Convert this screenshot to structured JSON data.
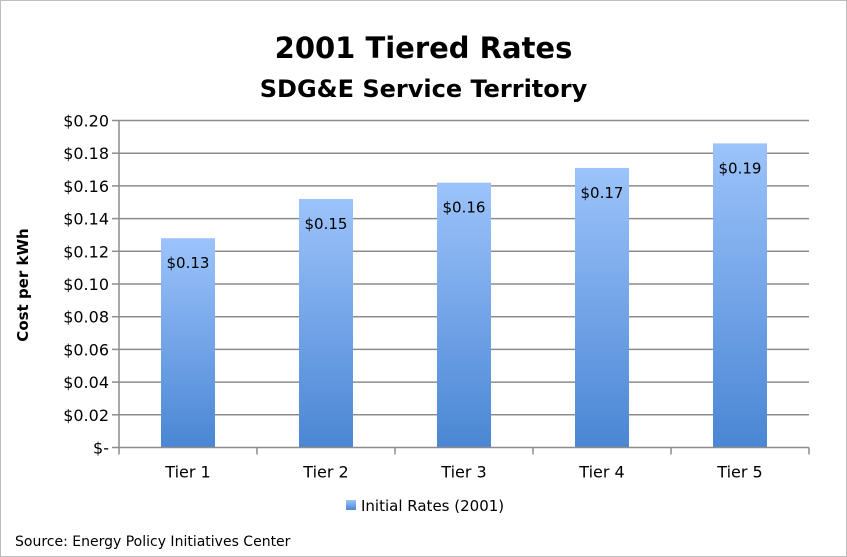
{
  "chart_data": {
    "type": "bar",
    "title": "2001 Tiered Rates",
    "subtitle": "SDG&E Service Territory",
    "xlabel": "",
    "ylabel": "Cost per kWh",
    "categories": [
      "Tier 1",
      "Tier 2",
      "Tier 3",
      "Tier 4",
      "Tier 5"
    ],
    "series": [
      {
        "name": "Initial Rates (2001)",
        "values": [
          0.128,
          0.152,
          0.162,
          0.171,
          0.186
        ],
        "data_labels": [
          "$0.13",
          "$0.15",
          "$0.16",
          "$0.17",
          "$0.19"
        ]
      }
    ],
    "ylim": [
      0,
      0.2
    ],
    "yticks": [
      0,
      0.02,
      0.04,
      0.06,
      0.08,
      0.1,
      0.12,
      0.14,
      0.16,
      0.18,
      0.2
    ],
    "ytick_labels": [
      "$-",
      "$0.02",
      "$0.04",
      "$0.06",
      "$0.08",
      "$0.10",
      "$0.12",
      "$0.14",
      "$0.16",
      "$0.18",
      "$0.20"
    ],
    "grid": true,
    "legend": "bottom",
    "colors": {
      "bar_top": "#9cc3fb",
      "bar_bottom": "#4a86d4",
      "grid": "#8c8c8c"
    }
  },
  "source": "Source:  Energy Policy Initiatives Center"
}
